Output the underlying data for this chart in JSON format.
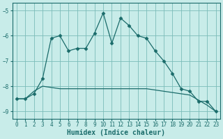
{
  "xlabel": "Humidex (Indice chaleur)",
  "ylabel": "",
  "background_color": "#c8ece9",
  "grid_color": "#7bbcb8",
  "line_color": "#1a6b6a",
  "xlim": [
    -0.5,
    23.5
  ],
  "ylim": [
    -9.3,
    -4.7
  ],
  "yticks": [
    -9,
    -8,
    -7,
    -6,
    -5
  ],
  "xticks": [
    0,
    1,
    2,
    3,
    4,
    5,
    6,
    7,
    8,
    9,
    10,
    11,
    12,
    13,
    14,
    15,
    16,
    17,
    18,
    19,
    20,
    21,
    22,
    23
  ],
  "curve1_x": [
    0,
    1,
    2,
    3,
    4,
    5,
    6,
    7,
    8,
    9,
    10,
    11,
    12,
    13,
    14,
    15,
    16,
    17,
    18,
    19,
    20,
    21,
    22,
    23
  ],
  "curve1_y": [
    -8.5,
    -8.5,
    -8.3,
    -7.7,
    -6.1,
    -6.0,
    -6.6,
    -6.5,
    -6.5,
    -5.9,
    -5.1,
    -6.3,
    -5.3,
    -5.6,
    -6.0,
    -6.1,
    -6.6,
    -7.0,
    -7.5,
    -8.1,
    -8.2,
    -8.6,
    -8.6,
    -9.0
  ],
  "curve2_x": [
    0,
    1,
    2,
    3,
    4,
    5,
    6,
    7,
    8,
    9,
    10,
    11,
    12,
    13,
    14,
    15,
    16,
    17,
    18,
    19,
    20,
    21,
    22,
    23
  ],
  "curve2_y": [
    -8.5,
    -8.5,
    -8.2,
    -8.0,
    -8.05,
    -8.1,
    -8.1,
    -8.1,
    -8.1,
    -8.1,
    -8.1,
    -8.1,
    -8.1,
    -8.1,
    -8.1,
    -8.1,
    -8.15,
    -8.2,
    -8.25,
    -8.3,
    -8.35,
    -8.55,
    -8.75,
    -9.0
  ]
}
